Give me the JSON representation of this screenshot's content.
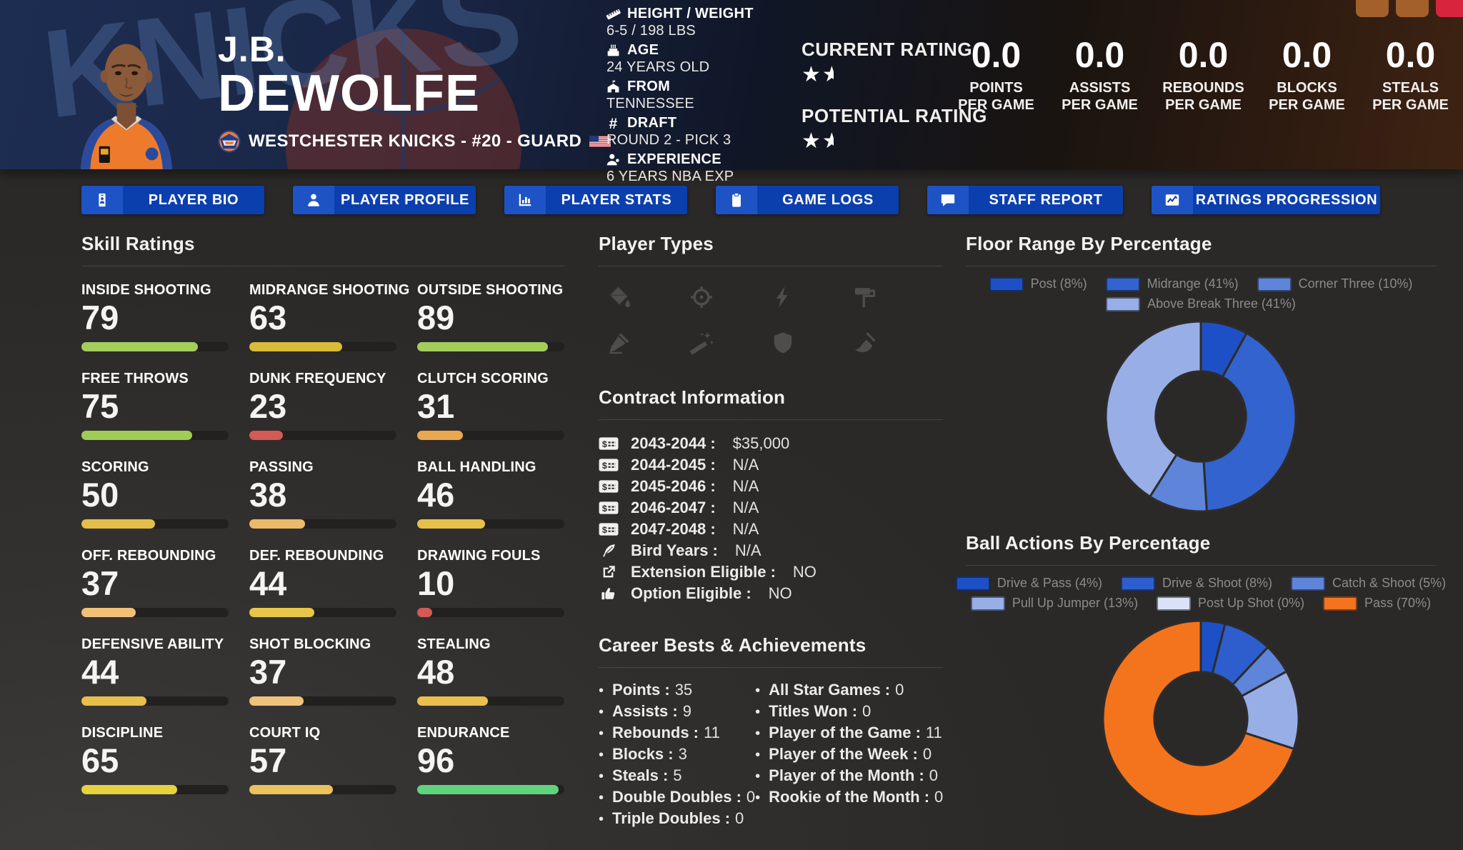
{
  "titlebar": {
    "buttons": [
      {
        "name": "window-button-1",
        "color": "#a3602b"
      },
      {
        "name": "window-button-2",
        "color": "#a3602b"
      },
      {
        "name": "window-button-close",
        "color": "#d8243c"
      }
    ]
  },
  "header": {
    "first_name": "J.B.",
    "last_name": "DEWOLFE",
    "team_line": "WESTCHESTER KNICKS - #20 - GUARD",
    "watermark": "KNICKS",
    "info": [
      {
        "icon": "ruler-icon",
        "label": "HEIGHT / WEIGHT",
        "value": "6-5 / 198 LBS"
      },
      {
        "icon": "cake-icon",
        "label": "AGE",
        "value": "24 YEARS OLD"
      },
      {
        "icon": "school-icon",
        "label": "FROM",
        "value": "TENNESSEE"
      },
      {
        "icon": "hashtag-icon",
        "label": "DRAFT",
        "value": "ROUND 2 - PICK 3"
      },
      {
        "icon": "person-plus-icon",
        "label": "EXPERIENCE",
        "value": "6 YEARS NBA EXP"
      }
    ],
    "ratings": [
      {
        "label": "CURRENT RATING",
        "stars": 1.5
      },
      {
        "label": "POTENTIAL RATING",
        "stars": 1.5
      }
    ],
    "stats": [
      {
        "value": "0.0",
        "line1": "POINTS",
        "line2": "PER GAME"
      },
      {
        "value": "0.0",
        "line1": "ASSISTS",
        "line2": "PER GAME"
      },
      {
        "value": "0.0",
        "line1": "REBOUNDS",
        "line2": "PER GAME"
      },
      {
        "value": "0.0",
        "line1": "BLOCKS",
        "line2": "PER GAME"
      },
      {
        "value": "0.0",
        "line1": "STEALS",
        "line2": "PER GAME"
      }
    ]
  },
  "tabs": [
    {
      "icon": "id-card-icon",
      "label": "PLAYER BIO"
    },
    {
      "icon": "user-icon",
      "label": "PLAYER PROFILE"
    },
    {
      "icon": "bar-chart-icon",
      "label": "PLAYER STATS"
    },
    {
      "icon": "clipboard-icon",
      "label": "GAME LOGS"
    },
    {
      "icon": "comment-icon",
      "label": "STAFF REPORT"
    },
    {
      "icon": "line-chart-icon",
      "label": "RATINGS PROGRESSION"
    }
  ],
  "skills": {
    "title": "Skill Ratings",
    "items": [
      {
        "label": "INSIDE SHOOTING",
        "value": 79,
        "color": "#a4cd5b"
      },
      {
        "label": "MIDRANGE SHOOTING",
        "value": 63,
        "color": "#d8bc3a"
      },
      {
        "label": "OUTSIDE SHOOTING",
        "value": 89,
        "color": "#a4cd5b"
      },
      {
        "label": "FREE THROWS",
        "value": 75,
        "color": "#9fcc55"
      },
      {
        "label": "DUNK FREQUENCY",
        "value": 23,
        "color": "#d45a55"
      },
      {
        "label": "CLUTCH SCORING",
        "value": 31,
        "color": "#eaa84f"
      },
      {
        "label": "SCORING",
        "value": 50,
        "color": "#e5bd49"
      },
      {
        "label": "PASSING",
        "value": 38,
        "color": "#edba6b"
      },
      {
        "label": "BALL HANDLING",
        "value": 46,
        "color": "#e7c04a"
      },
      {
        "label": "OFF. REBOUNDING",
        "value": 37,
        "color": "#f0c078"
      },
      {
        "label": "DEF. REBOUNDING",
        "value": 44,
        "color": "#e7c64a"
      },
      {
        "label": "DRAWING FOULS",
        "value": 10,
        "color": "#d45a55"
      },
      {
        "label": "DEFENSIVE ABILITY",
        "value": 44,
        "color": "#e7bf4a"
      },
      {
        "label": "SHOT BLOCKING",
        "value": 37,
        "color": "#efc37b"
      },
      {
        "label": "STEALING",
        "value": 48,
        "color": "#e9c04e"
      },
      {
        "label": "DISCIPLINE",
        "value": 65,
        "color": "#e5d23f"
      },
      {
        "label": "COURT IQ",
        "value": 57,
        "color": "#ebc35b"
      },
      {
        "label": "ENDURANCE",
        "value": 96,
        "color": "#5fd47d"
      }
    ]
  },
  "player_types": {
    "title": "Player Types",
    "icons": [
      "paint-bucket-icon",
      "crosshair-icon",
      "bolt-icon",
      "paint-roller-icon",
      "pen-nib-icon",
      "magic-wand-icon",
      "shield-icon",
      "broom-icon"
    ]
  },
  "contract": {
    "title": "Contract Information",
    "rows": [
      {
        "icon": "money-check-icon",
        "label": "2043-2044 :",
        "value": "$35,000"
      },
      {
        "icon": "money-check-icon",
        "label": "2044-2045 :",
        "value": "N/A"
      },
      {
        "icon": "money-check-icon",
        "label": "2045-2046 :",
        "value": "N/A"
      },
      {
        "icon": "money-check-icon",
        "label": "2046-2047 :",
        "value": "N/A"
      },
      {
        "icon": "money-check-icon",
        "label": "2047-2048 :",
        "value": "N/A"
      },
      {
        "icon": "feather-icon",
        "label": "Bird Years :",
        "value": "N/A"
      },
      {
        "icon": "external-link-icon",
        "label": "Extension Eligible :",
        "value": "NO"
      },
      {
        "icon": "thumbs-up-icon",
        "label": "Option Eligible :",
        "value": "NO"
      }
    ]
  },
  "career": {
    "title": "Career Bests & Achievements",
    "left": [
      {
        "label": "Points :",
        "value": "35"
      },
      {
        "label": "Assists :",
        "value": "9"
      },
      {
        "label": "Rebounds :",
        "value": "11"
      },
      {
        "label": "Blocks :",
        "value": "3"
      },
      {
        "label": "Steals :",
        "value": "5"
      },
      {
        "label": "Double Doubles :",
        "value": "0"
      },
      {
        "label": "Triple Doubles :",
        "value": "0"
      }
    ],
    "right": [
      {
        "label": "All Star Games :",
        "value": "0"
      },
      {
        "label": "Titles Won :",
        "value": "0"
      },
      {
        "label": "Player of the Game :",
        "value": "11"
      },
      {
        "label": "Player of the Week :",
        "value": "0"
      },
      {
        "label": "Player of the Month :",
        "value": "0"
      },
      {
        "label": "Rookie of the Month :",
        "value": "0"
      }
    ]
  },
  "chart_data": [
    {
      "type": "pie",
      "donut": true,
      "title": "Floor Range By Percentage",
      "labels": [
        "Post",
        "Midrange",
        "Corner Three",
        "Above Break Three"
      ],
      "values": [
        8,
        41,
        10,
        41
      ],
      "colors": [
        "#1d50c6",
        "#3263cf",
        "#5e85da",
        "#98aee7"
      ],
      "legend_position": "top",
      "legend_rows": [
        [
          0,
          1,
          2
        ],
        [
          3
        ]
      ]
    },
    {
      "type": "pie",
      "donut": true,
      "title": "Ball Actions By Percentage",
      "labels": [
        "Drive & Pass",
        "Drive & Shoot",
        "Catch & Shoot",
        "Pull Up Jumper",
        "Post Up Shot",
        "Pass"
      ],
      "values": [
        4,
        8,
        5,
        13,
        0,
        70
      ],
      "colors": [
        "#1d50c6",
        "#2e5ece",
        "#5e85da",
        "#98aee7",
        "#d9e2f6",
        "#f4741d"
      ],
      "legend_position": "top",
      "legend_rows": [
        [
          0,
          1,
          2
        ],
        [
          3,
          4,
          5
        ]
      ]
    }
  ]
}
